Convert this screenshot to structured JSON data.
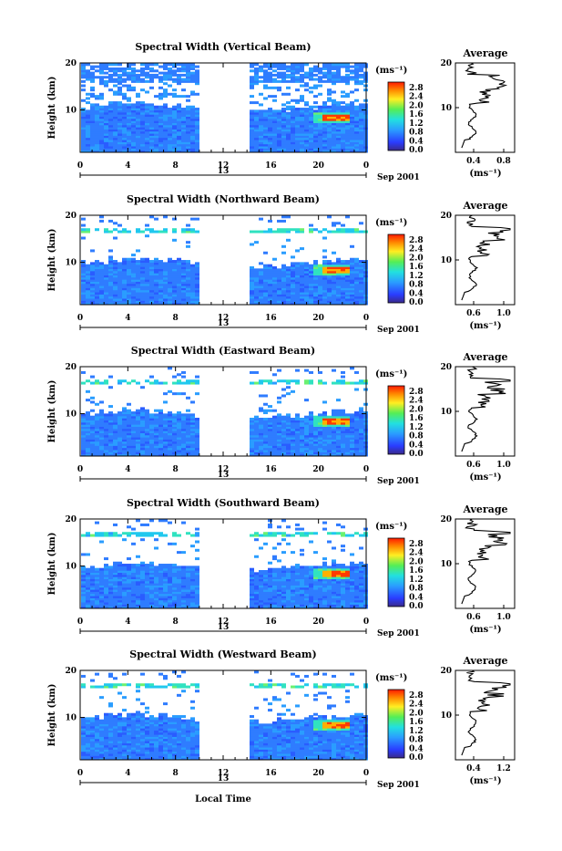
{
  "shared": {
    "ylabel": "Height (km)",
    "unit_label": "(ms⁻¹)",
    "avg_title": "Average",
    "avg_xlabel": "(ms⁻¹)",
    "date_suffix": "Sep 2001",
    "day_label": "13",
    "xlabel": "Local Time",
    "colorbar_ticks": [
      "0.0",
      "0.4",
      "0.8",
      "1.2",
      "1.6",
      "2.0",
      "2.4",
      "2.8"
    ],
    "colors": {
      "low": "#2b1a8f",
      "mid": "#2a7fff",
      "high": "#ff2a00",
      "background": "#ffffff"
    }
  },
  "chart_data": [
    {
      "type": "heatmap",
      "title": "Spectral Width (Vertical Beam)",
      "xticks": [
        "0",
        "4",
        "8",
        "12",
        "16",
        "20",
        "0"
      ],
      "x_range": [
        0,
        24
      ],
      "y_range": [
        0,
        20
      ],
      "yticks": [
        "20",
        "10"
      ],
      "data_gap_hours": [
        10.3,
        14.1
      ],
      "colorbar_range": [
        0.0,
        3.0
      ],
      "avg_xticks": [
        "0.4",
        "0.8"
      ],
      "average_profile_xrange": [
        0.3,
        1.0
      ]
    },
    {
      "type": "heatmap",
      "title": "Spectral Width (Northward Beam)",
      "xticks": [
        "0",
        "4",
        "8",
        "12",
        "16",
        "20",
        "0"
      ],
      "x_range": [
        0,
        24
      ],
      "y_range": [
        0,
        20
      ],
      "yticks": [
        "20",
        "10"
      ],
      "data_gap_hours": [
        10.3,
        14.1
      ],
      "colorbar_range": [
        0.0,
        3.0
      ],
      "avg_xticks": [
        "0.6",
        "1.0"
      ],
      "average_profile_xrange": [
        0.45,
        1.2
      ]
    },
    {
      "type": "heatmap",
      "title": "Spectral Width (Eastward Beam)",
      "xticks": [
        "0",
        "4",
        "8",
        "12",
        "16",
        "20",
        "0"
      ],
      "x_range": [
        0,
        24
      ],
      "y_range": [
        0,
        20
      ],
      "yticks": [
        "20",
        "10"
      ],
      "data_gap_hours": [
        10.3,
        14.1
      ],
      "colorbar_range": [
        0.0,
        3.0
      ],
      "avg_xticks": [
        "0.6",
        "1.0"
      ],
      "average_profile_xrange": [
        0.5,
        1.2
      ]
    },
    {
      "type": "heatmap",
      "title": "Spectral Width (Southward Beam)",
      "xticks": [
        "0",
        "4",
        "8",
        "12",
        "16",
        "20",
        "0"
      ],
      "x_range": [
        0,
        24
      ],
      "y_range": [
        0,
        20
      ],
      "yticks": [
        "20",
        "10"
      ],
      "data_gap_hours": [
        10.3,
        14.1
      ],
      "colorbar_range": [
        0.0,
        3.0
      ],
      "avg_xticks": [
        "0.6",
        "1.0"
      ],
      "average_profile_xrange": [
        0.5,
        1.2
      ]
    },
    {
      "type": "heatmap",
      "title": "Spectral Width (Westward Beam)",
      "xticks": [
        "0",
        "4",
        "8",
        "12",
        "16",
        "20",
        "0"
      ],
      "x_range": [
        0,
        24
      ],
      "y_range": [
        0,
        20
      ],
      "yticks": [
        "20",
        "10"
      ],
      "data_gap_hours": [
        10.3,
        14.1
      ],
      "colorbar_range": [
        0.0,
        3.0
      ],
      "avg_xticks": [
        "0.4",
        "1.2"
      ],
      "average_profile_xrange": [
        0.3,
        1.4
      ]
    }
  ]
}
